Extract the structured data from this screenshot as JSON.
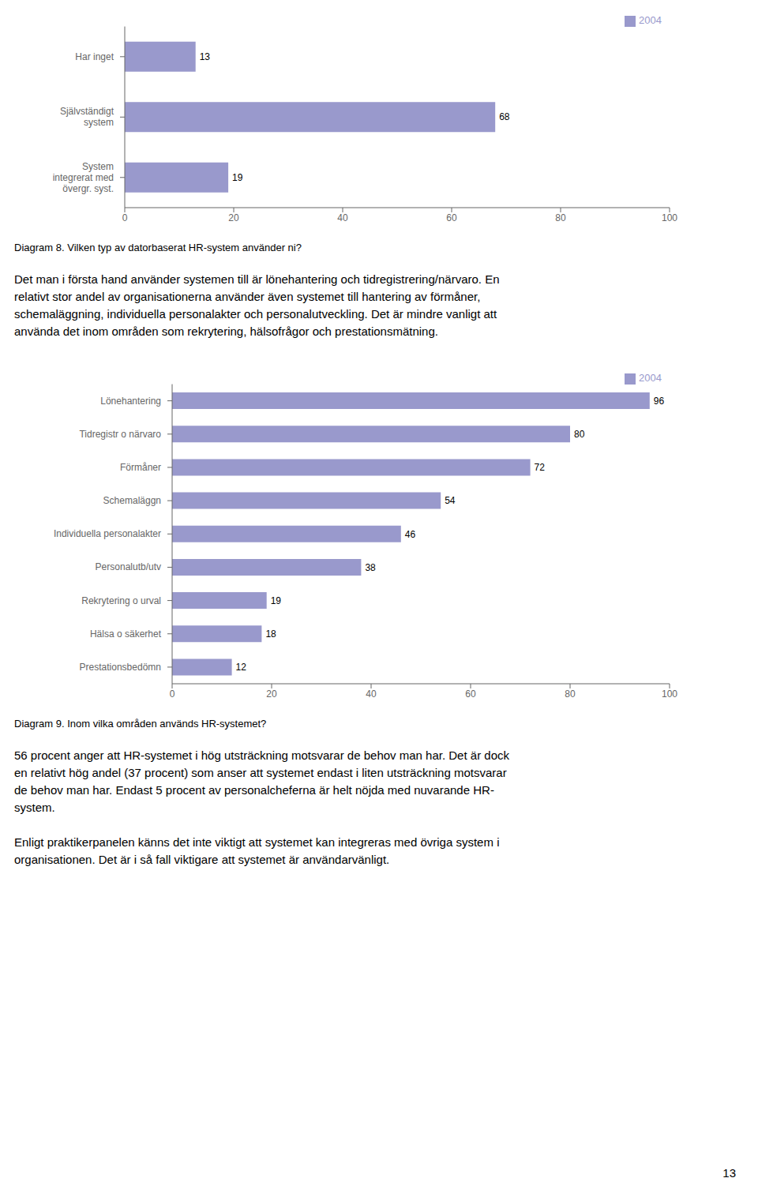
{
  "chart_data": [
    {
      "type": "bar",
      "orientation": "horizontal",
      "title": "Diagram 8. Vilken typ av datorbaserat HR-system använder ni?",
      "categories": [
        "System\nintegrerat med\növergr. syst.",
        "Självständigt\nsystem",
        "Har inget"
      ],
      "series": [
        {
          "name": "2004",
          "color": "#9999cc",
          "values": [
            19,
            68,
            13
          ]
        }
      ],
      "xlim": [
        0,
        100
      ],
      "xticks": [
        0,
        20,
        40,
        60,
        80,
        100
      ],
      "data_labels": true,
      "grid": false,
      "legend": "upper right",
      "annotations": [
        [
          "Det man i första hand använder systemen till är lönehantering och tidregistrering/närvaro. En",
          "relativt stor andel av organisationerna använder även systemet till hantering av förmåner,",
          "schemaläggning, individuella personalakter och personalutveckling. Det är mindre vanligt att",
          "använda det inom områden som rekrytering, hälsofrågor och prestationsmätning."
        ]
      ]
    },
    {
      "type": "bar",
      "orientation": "horizontal",
      "title": "Diagram 9. Inom vilka områden används HR-systemet?",
      "categories": [
        "Lönehantering",
        "Tidregistr o närvaro",
        "Förmåner",
        "Schemaläggn",
        "Individuella personalakter",
        "Personalutb/utv",
        "Rekrytering o urval",
        "Hälsa o säkerhet",
        "Prestationsbedömn"
      ],
      "series": [
        {
          "name": "2004",
          "color": "#9999cc",
          "values": [
            96,
            80,
            72,
            54,
            46,
            38,
            19,
            18,
            12
          ]
        }
      ],
      "xlim": [
        0,
        100
      ],
      "xticks": [
        0,
        20,
        40,
        60,
        80,
        100
      ],
      "data_labels": true,
      "grid": false,
      "legend": "upper right",
      "annotations": [
        [
          "56 procent anger att HR-systemet i hög utsträckning motsvarar de behov man har. Det är dock",
          "en relativt hög andel (37 procent) som anser att systemet endast i liten utsträckning motsvarar",
          "de behov man har. Endast 5 procent av personalcheferna är helt nöjda med nuvarande HR-",
          "system."
        ],
        [
          "Enligt praktikerpanelen känns det inte viktigt att systemet kan integreras med övriga system i",
          "organisationen. Det är i så fall viktigare att systemet är användarvänligt."
        ]
      ]
    }
  ],
  "page_number": "13"
}
